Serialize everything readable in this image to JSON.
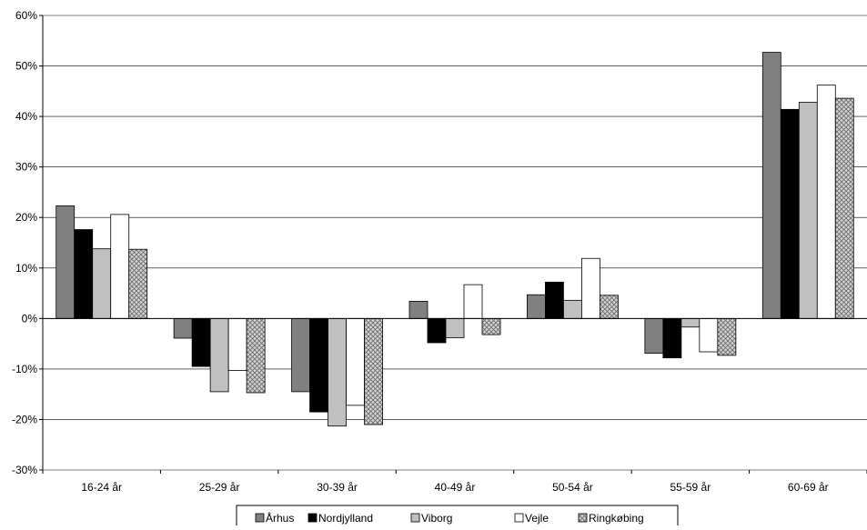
{
  "chart_data": {
    "type": "bar",
    "title": "",
    "xlabel": "",
    "ylabel": "",
    "ylim": [
      -0.3,
      0.6
    ],
    "yticks": [
      0.6,
      0.5,
      0.4,
      0.3,
      0.2,
      0.1,
      0.0,
      -0.1,
      -0.2,
      -0.3
    ],
    "ytick_labels": [
      "60%",
      "50%",
      "40%",
      "30%",
      "20%",
      "10%",
      "0%",
      "-10%",
      "-20%",
      "-30%"
    ],
    "grid": true,
    "legend_position": "bottom",
    "categories": [
      "16-24 år",
      "25-29 år",
      "30-39 år",
      "40-49 år",
      "50-54 år",
      "55-59 år",
      "60-69 år"
    ],
    "series": [
      {
        "name": "Århus",
        "color": "#808080",
        "pattern": "solid",
        "values": [
          0.223,
          -0.039,
          -0.145,
          0.034,
          0.047,
          -0.069,
          0.527
        ]
      },
      {
        "name": "Nordjylland",
        "color": "#000000",
        "pattern": "solid",
        "values": [
          0.176,
          -0.095,
          -0.185,
          -0.048,
          0.072,
          -0.078,
          0.414
        ]
      },
      {
        "name": "Viborg",
        "color": "#c0c0c0",
        "pattern": "solid",
        "values": [
          0.138,
          -0.145,
          -0.213,
          -0.038,
          0.036,
          -0.017,
          0.428
        ]
      },
      {
        "name": "Vejle",
        "color": "#ffffff",
        "pattern": "solid",
        "values": [
          0.206,
          -0.103,
          -0.172,
          0.067,
          0.119,
          -0.066,
          0.462
        ]
      },
      {
        "name": "Ringkøbing",
        "color": "#b0b0b0",
        "pattern": "crosshatch",
        "values": [
          0.137,
          -0.147,
          -0.21,
          -0.032,
          0.046,
          -0.073,
          0.436
        ]
      }
    ]
  }
}
